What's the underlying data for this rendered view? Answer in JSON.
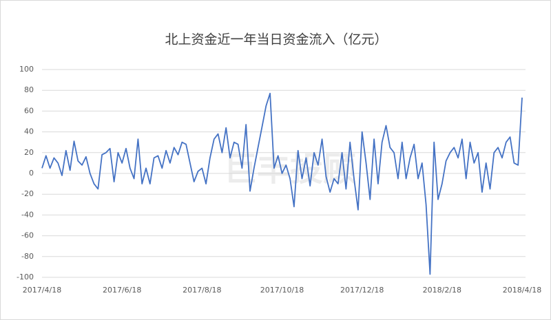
{
  "chart_data": {
    "type": "line",
    "title": "北上资金近一年当日资金流入（亿元）",
    "watermark": "巨丰投顾",
    "categories": [
      "2017/4/18",
      null,
      null,
      null,
      null,
      null,
      null,
      null,
      null,
      null,
      null,
      null,
      null,
      null,
      null,
      null,
      null,
      null,
      null,
      null,
      "2017/6/18",
      null,
      null,
      null,
      null,
      null,
      null,
      null,
      null,
      null,
      null,
      null,
      null,
      null,
      null,
      null,
      null,
      null,
      null,
      null,
      "2017/8/18",
      null,
      null,
      null,
      null,
      null,
      null,
      null,
      null,
      null,
      null,
      null,
      null,
      null,
      null,
      null,
      null,
      null,
      null,
      null,
      "2017/10/18",
      null,
      null,
      null,
      null,
      null,
      null,
      null,
      null,
      null,
      null,
      null,
      null,
      null,
      null,
      null,
      null,
      null,
      null,
      null,
      "2017/12/18",
      null,
      null,
      null,
      null,
      null,
      null,
      null,
      null,
      null,
      null,
      null,
      null,
      null,
      null,
      null,
      null,
      null,
      null,
      null,
      "2018/2/18",
      null,
      null,
      null,
      null,
      null,
      null,
      null,
      null,
      null,
      null,
      null,
      null,
      null,
      null,
      null,
      null,
      null,
      null,
      null,
      "2018/4/18"
    ],
    "series": [
      {
        "name": "北上资金",
        "color": "#4472c4",
        "values": [
          5,
          17,
          5,
          15,
          10,
          -2,
          22,
          3,
          31,
          12,
          8,
          16,
          0,
          -10,
          -15,
          18,
          20,
          24,
          -8,
          20,
          10,
          24,
          5,
          -5,
          33,
          -10,
          5,
          -10,
          15,
          17,
          5,
          22,
          10,
          25,
          18,
          30,
          28,
          10,
          -8,
          2,
          5,
          -10,
          15,
          33,
          38,
          20,
          44,
          15,
          30,
          28,
          5,
          47,
          -17,
          5,
          25,
          45,
          65,
          77,
          5,
          17,
          0,
          8,
          -5,
          -32,
          22,
          -5,
          15,
          -12,
          20,
          8,
          33,
          -3,
          -18,
          -5,
          -10,
          20,
          -15,
          30,
          -5,
          -35,
          40,
          10,
          -25,
          33,
          -10,
          30,
          46,
          25,
          20,
          -5,
          30,
          -5,
          15,
          28,
          -5,
          10,
          -30,
          -97,
          30,
          -25,
          -10,
          12,
          20,
          25,
          15,
          33,
          -5,
          30,
          10,
          20,
          -18,
          10,
          -15,
          20,
          25,
          15,
          30,
          35,
          10,
          8,
          73
        ]
      }
    ],
    "ylim": [
      -100,
      100
    ],
    "yticks": [
      -100,
      -80,
      -60,
      -40,
      -20,
      0,
      20,
      40,
      60,
      80,
      100
    ],
    "grid": true
  }
}
